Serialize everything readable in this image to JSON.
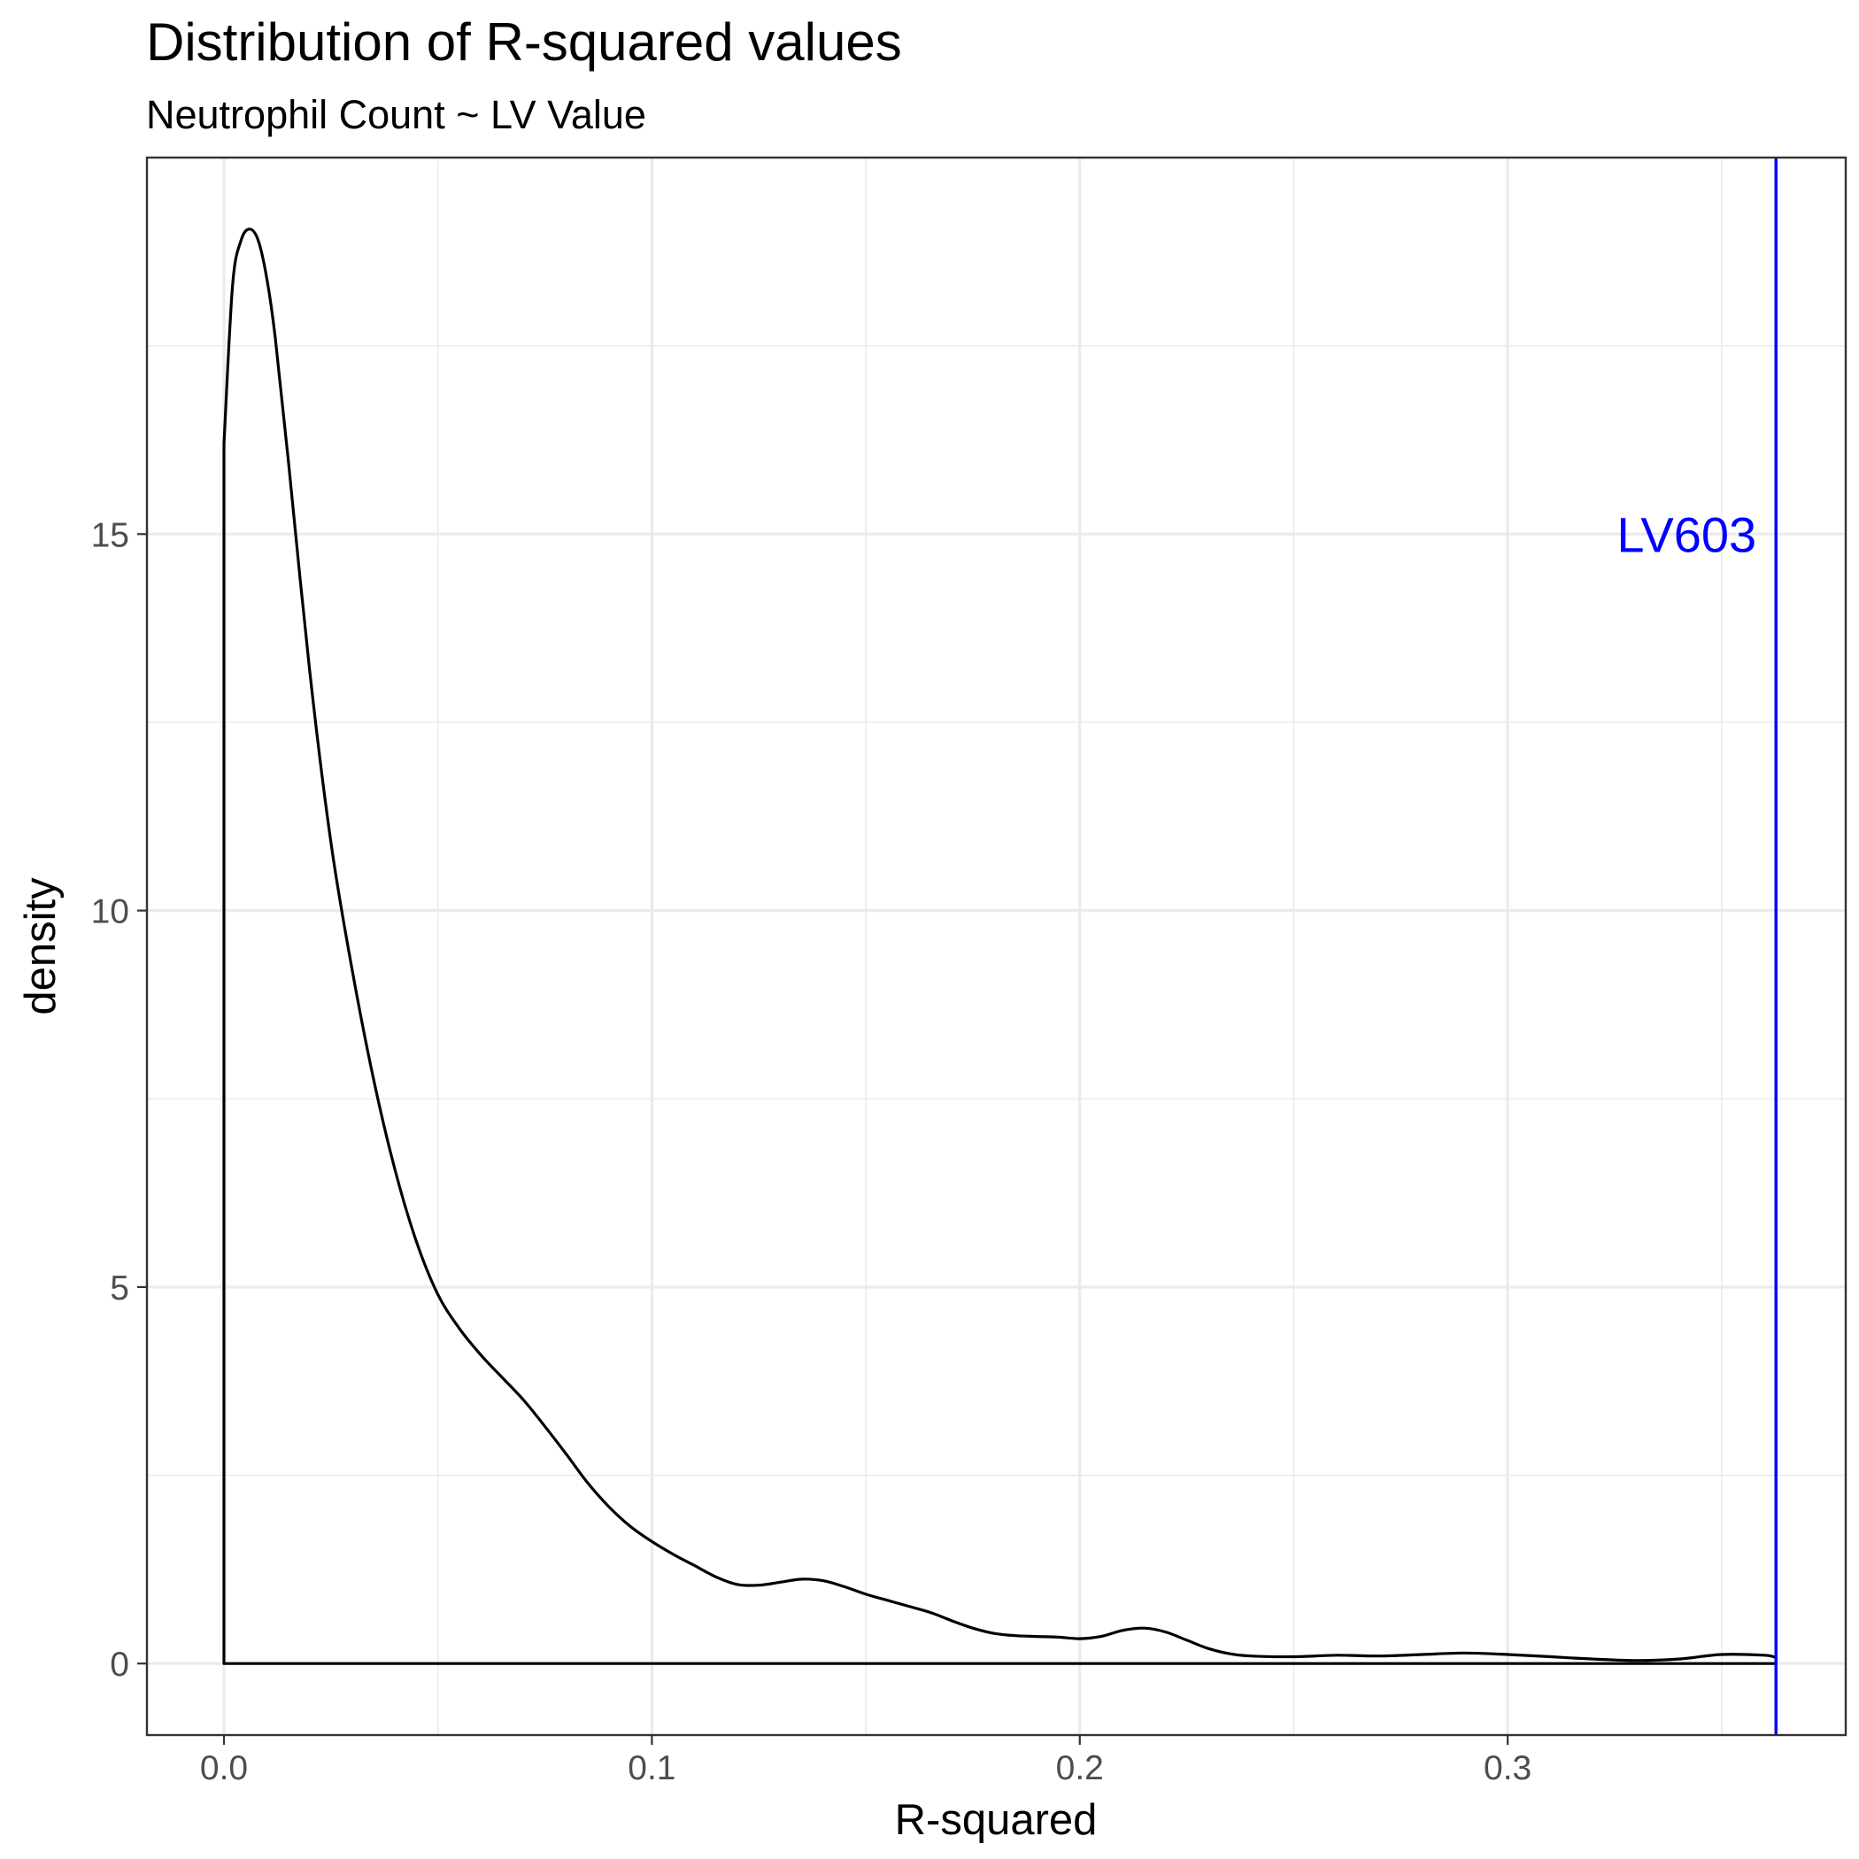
{
  "chart_data": {
    "type": "area",
    "title": "Distribution of R-squared values",
    "subtitle": "Neutrophil Count ~ LV Value",
    "xlabel": "R-squared",
    "ylabel": "density",
    "xlim": [
      -0.018,
      0.379
    ],
    "ylim": [
      -0.95,
      20.0
    ],
    "x_ticks": [
      0.0,
      0.1,
      0.2,
      0.3
    ],
    "x_tick_labels": [
      "0.0",
      "0.1",
      "0.2",
      "0.3"
    ],
    "y_ticks": [
      0,
      5,
      10,
      15
    ],
    "y_tick_labels": [
      "0",
      "5",
      "10",
      "15"
    ],
    "grid": true,
    "series": [
      {
        "x": [
          0.0,
          0.002,
          0.004,
          0.006,
          0.008,
          0.01,
          0.012,
          0.015,
          0.02,
          0.025,
          0.03,
          0.035,
          0.04,
          0.045,
          0.05,
          0.055,
          0.06,
          0.065,
          0.07,
          0.075,
          0.08,
          0.085,
          0.09,
          0.095,
          0.1,
          0.105,
          0.11,
          0.115,
          0.12,
          0.125,
          0.13,
          0.135,
          0.14,
          0.145,
          0.15,
          0.155,
          0.16,
          0.165,
          0.17,
          0.175,
          0.18,
          0.185,
          0.19,
          0.195,
          0.2,
          0.205,
          0.21,
          0.215,
          0.22,
          0.225,
          0.23,
          0.235,
          0.24,
          0.25,
          0.26,
          0.27,
          0.28,
          0.29,
          0.3,
          0.31,
          0.32,
          0.33,
          0.34,
          0.35,
          0.36,
          0.3627
        ],
        "y": [
          16.2,
          18.3,
          18.9,
          19.05,
          18.9,
          18.4,
          17.6,
          16.0,
          13.2,
          10.9,
          9.2,
          7.75,
          6.55,
          5.6,
          4.9,
          4.45,
          4.1,
          3.8,
          3.5,
          3.15,
          2.78,
          2.4,
          2.08,
          1.82,
          1.62,
          1.45,
          1.3,
          1.15,
          1.05,
          1.04,
          1.08,
          1.12,
          1.1,
          1.02,
          0.92,
          0.84,
          0.76,
          0.68,
          0.57,
          0.47,
          0.4,
          0.37,
          0.36,
          0.35,
          0.33,
          0.36,
          0.44,
          0.47,
          0.42,
          0.31,
          0.2,
          0.13,
          0.1,
          0.09,
          0.11,
          0.1,
          0.12,
          0.14,
          0.12,
          0.09,
          0.06,
          0.04,
          0.06,
          0.12,
          0.11,
          0.08
        ]
      }
    ],
    "line_color": "#000000",
    "reference_line": {
      "x": 0.3627,
      "label": "LV603",
      "label_y": 15,
      "color": "#0000ff"
    }
  }
}
